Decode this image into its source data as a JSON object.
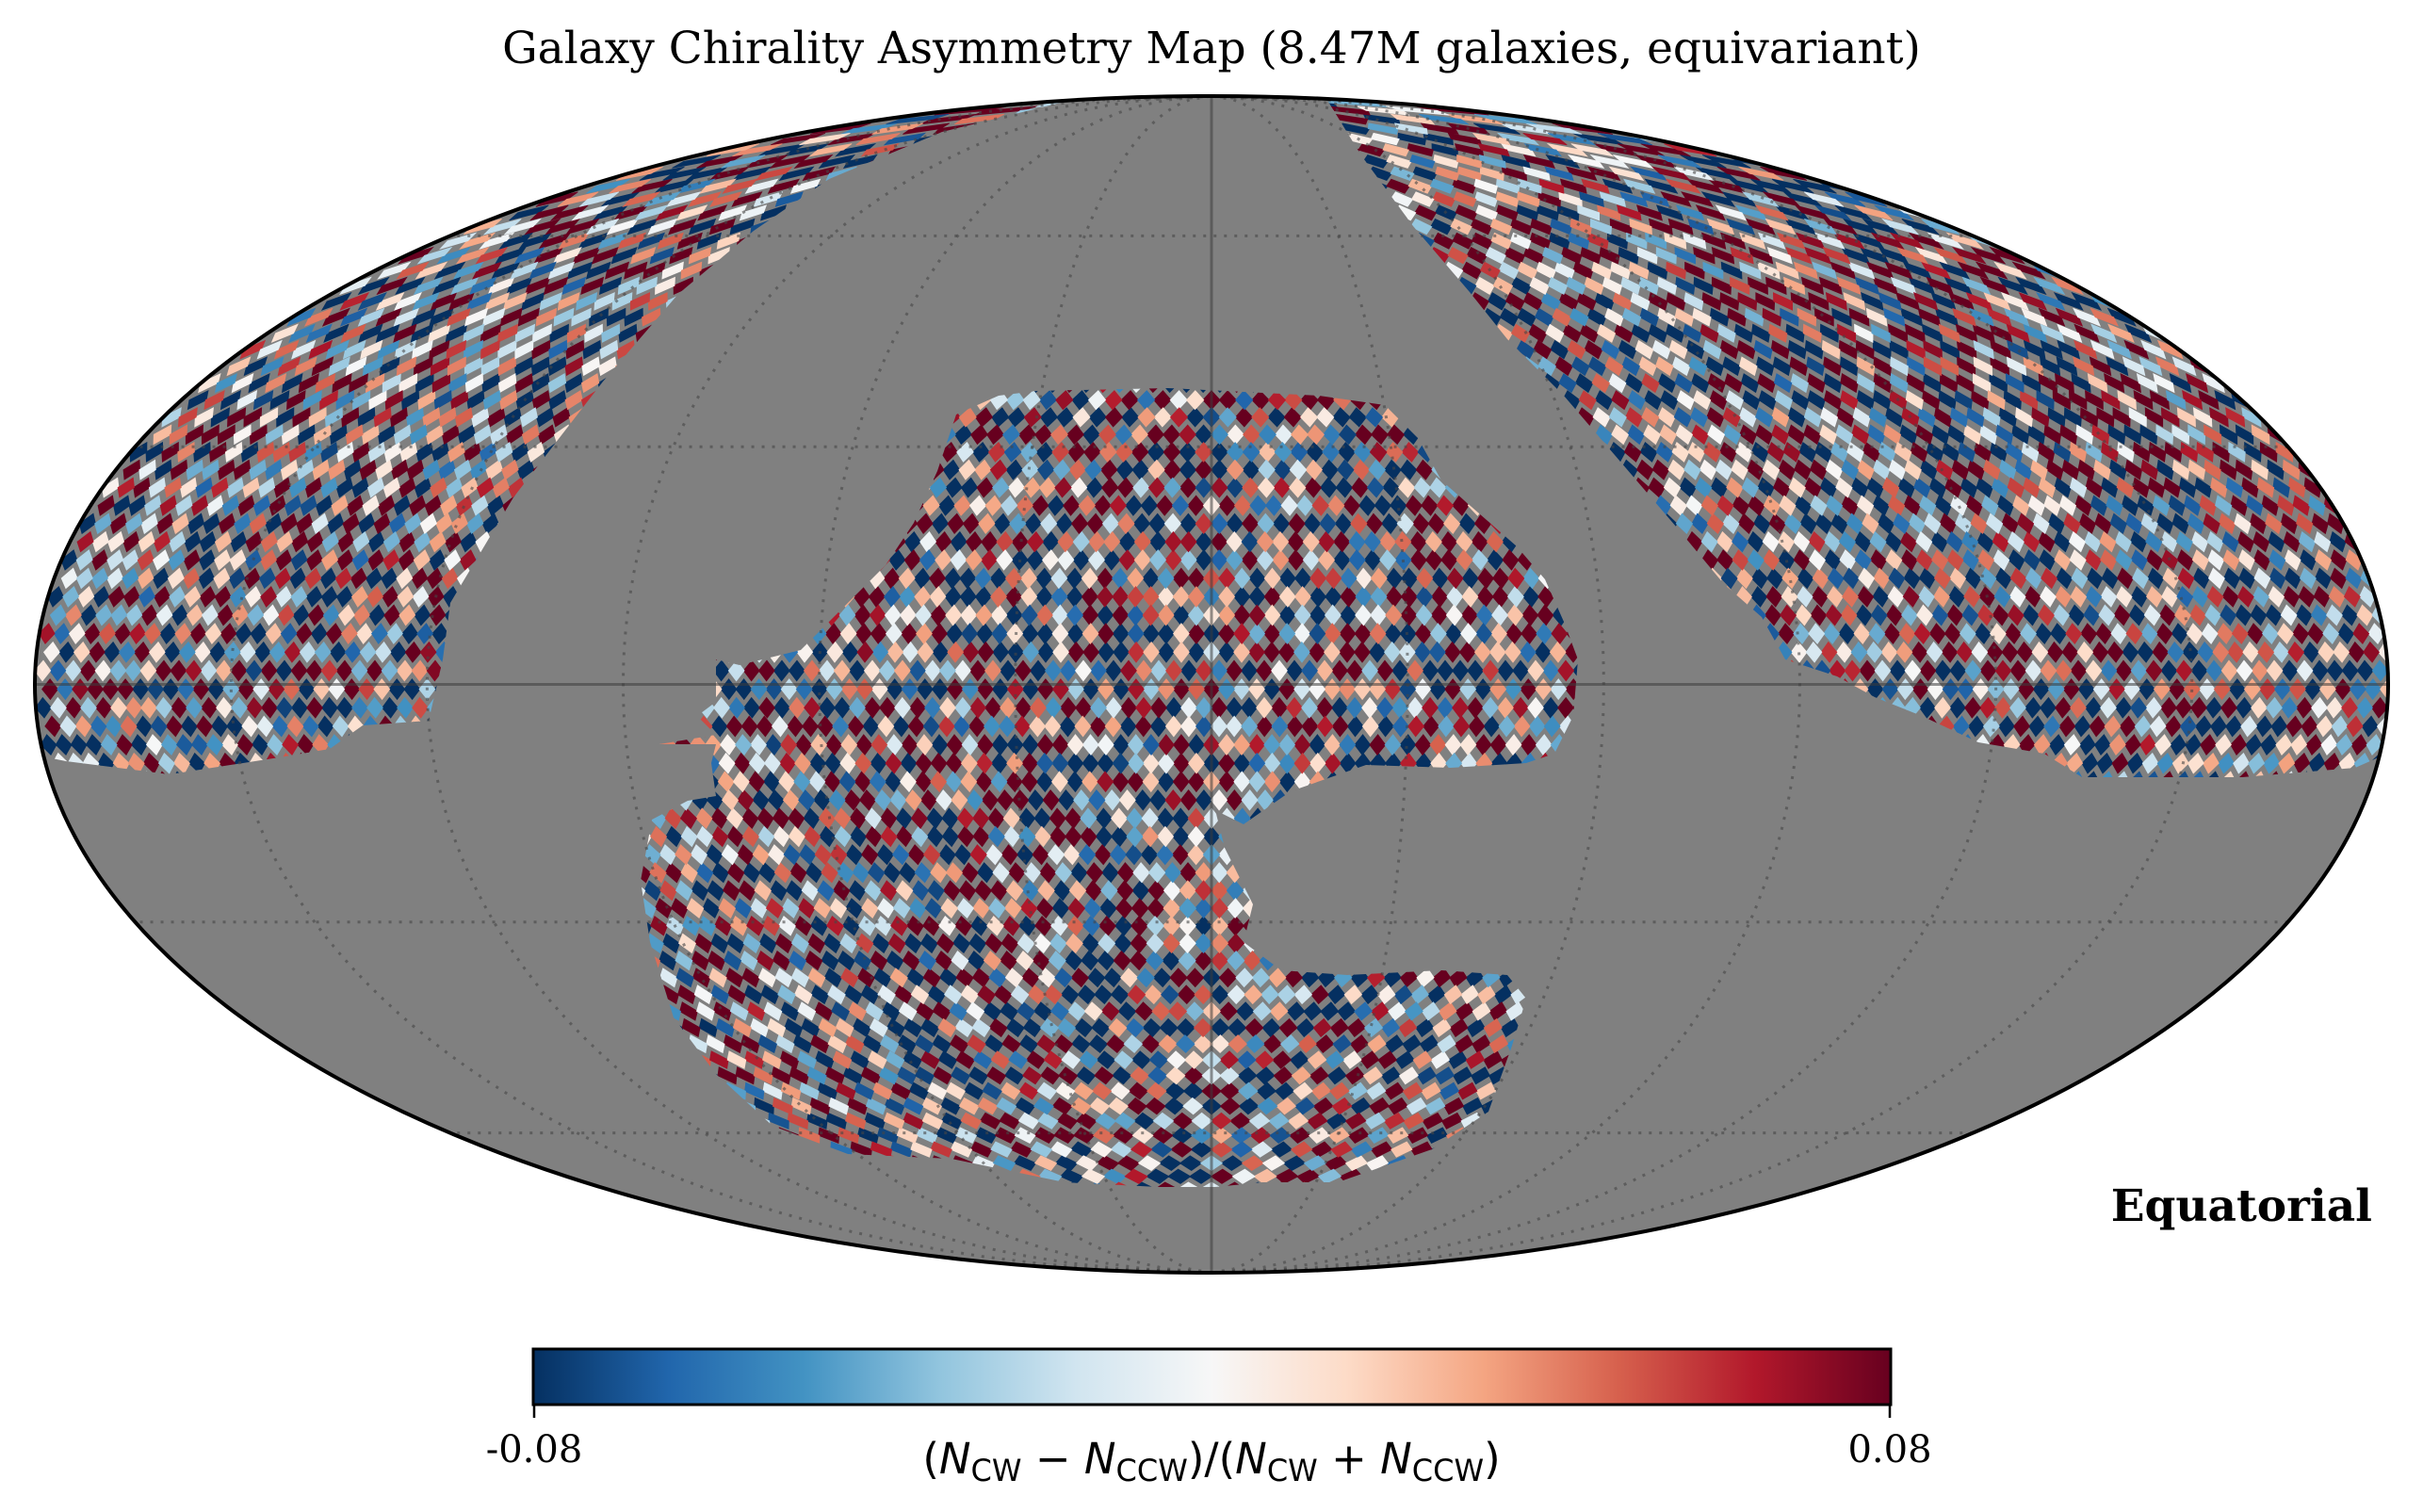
{
  "chart_data": {
    "type": "heatmap",
    "projection": "mollweide",
    "title": "Galaxy Chirality Asymmetry Map (8.47M galaxies, equivariant)",
    "coordinate_system": "Equatorial",
    "colormap": "RdBu_r",
    "colormap_stops": [
      "#053061",
      "#2166ac",
      "#4393c3",
      "#92c5de",
      "#d1e5f0",
      "#f7f7f7",
      "#fddbc7",
      "#f4a582",
      "#d6604d",
      "#b2182b",
      "#67001f"
    ],
    "missing_color": "#808080",
    "clim": [
      -0.08,
      0.08
    ],
    "colorbar": {
      "orientation": "horizontal",
      "ticks": [
        "-0.08",
        "0.08"
      ],
      "label_parts": {
        "open": "(",
        "n": "N",
        "cw": "CW",
        "ccw": "CCW",
        "minus": " − ",
        "plus": " + ",
        "close_div_open": ")/(",
        "close": ")"
      }
    },
    "graticule": {
      "meridian_step_deg": 30,
      "parallel_step_deg": 30,
      "style": "dotted"
    },
    "value_distribution": "per-pixel values scattered across the full [-0.08, 0.08] range with no coherent large-scale pattern",
    "coverage_regions": [
      "northern high-declination band (left wing)",
      "northern high-declination band (right wing)",
      "central equatorial/southern footprint"
    ]
  }
}
